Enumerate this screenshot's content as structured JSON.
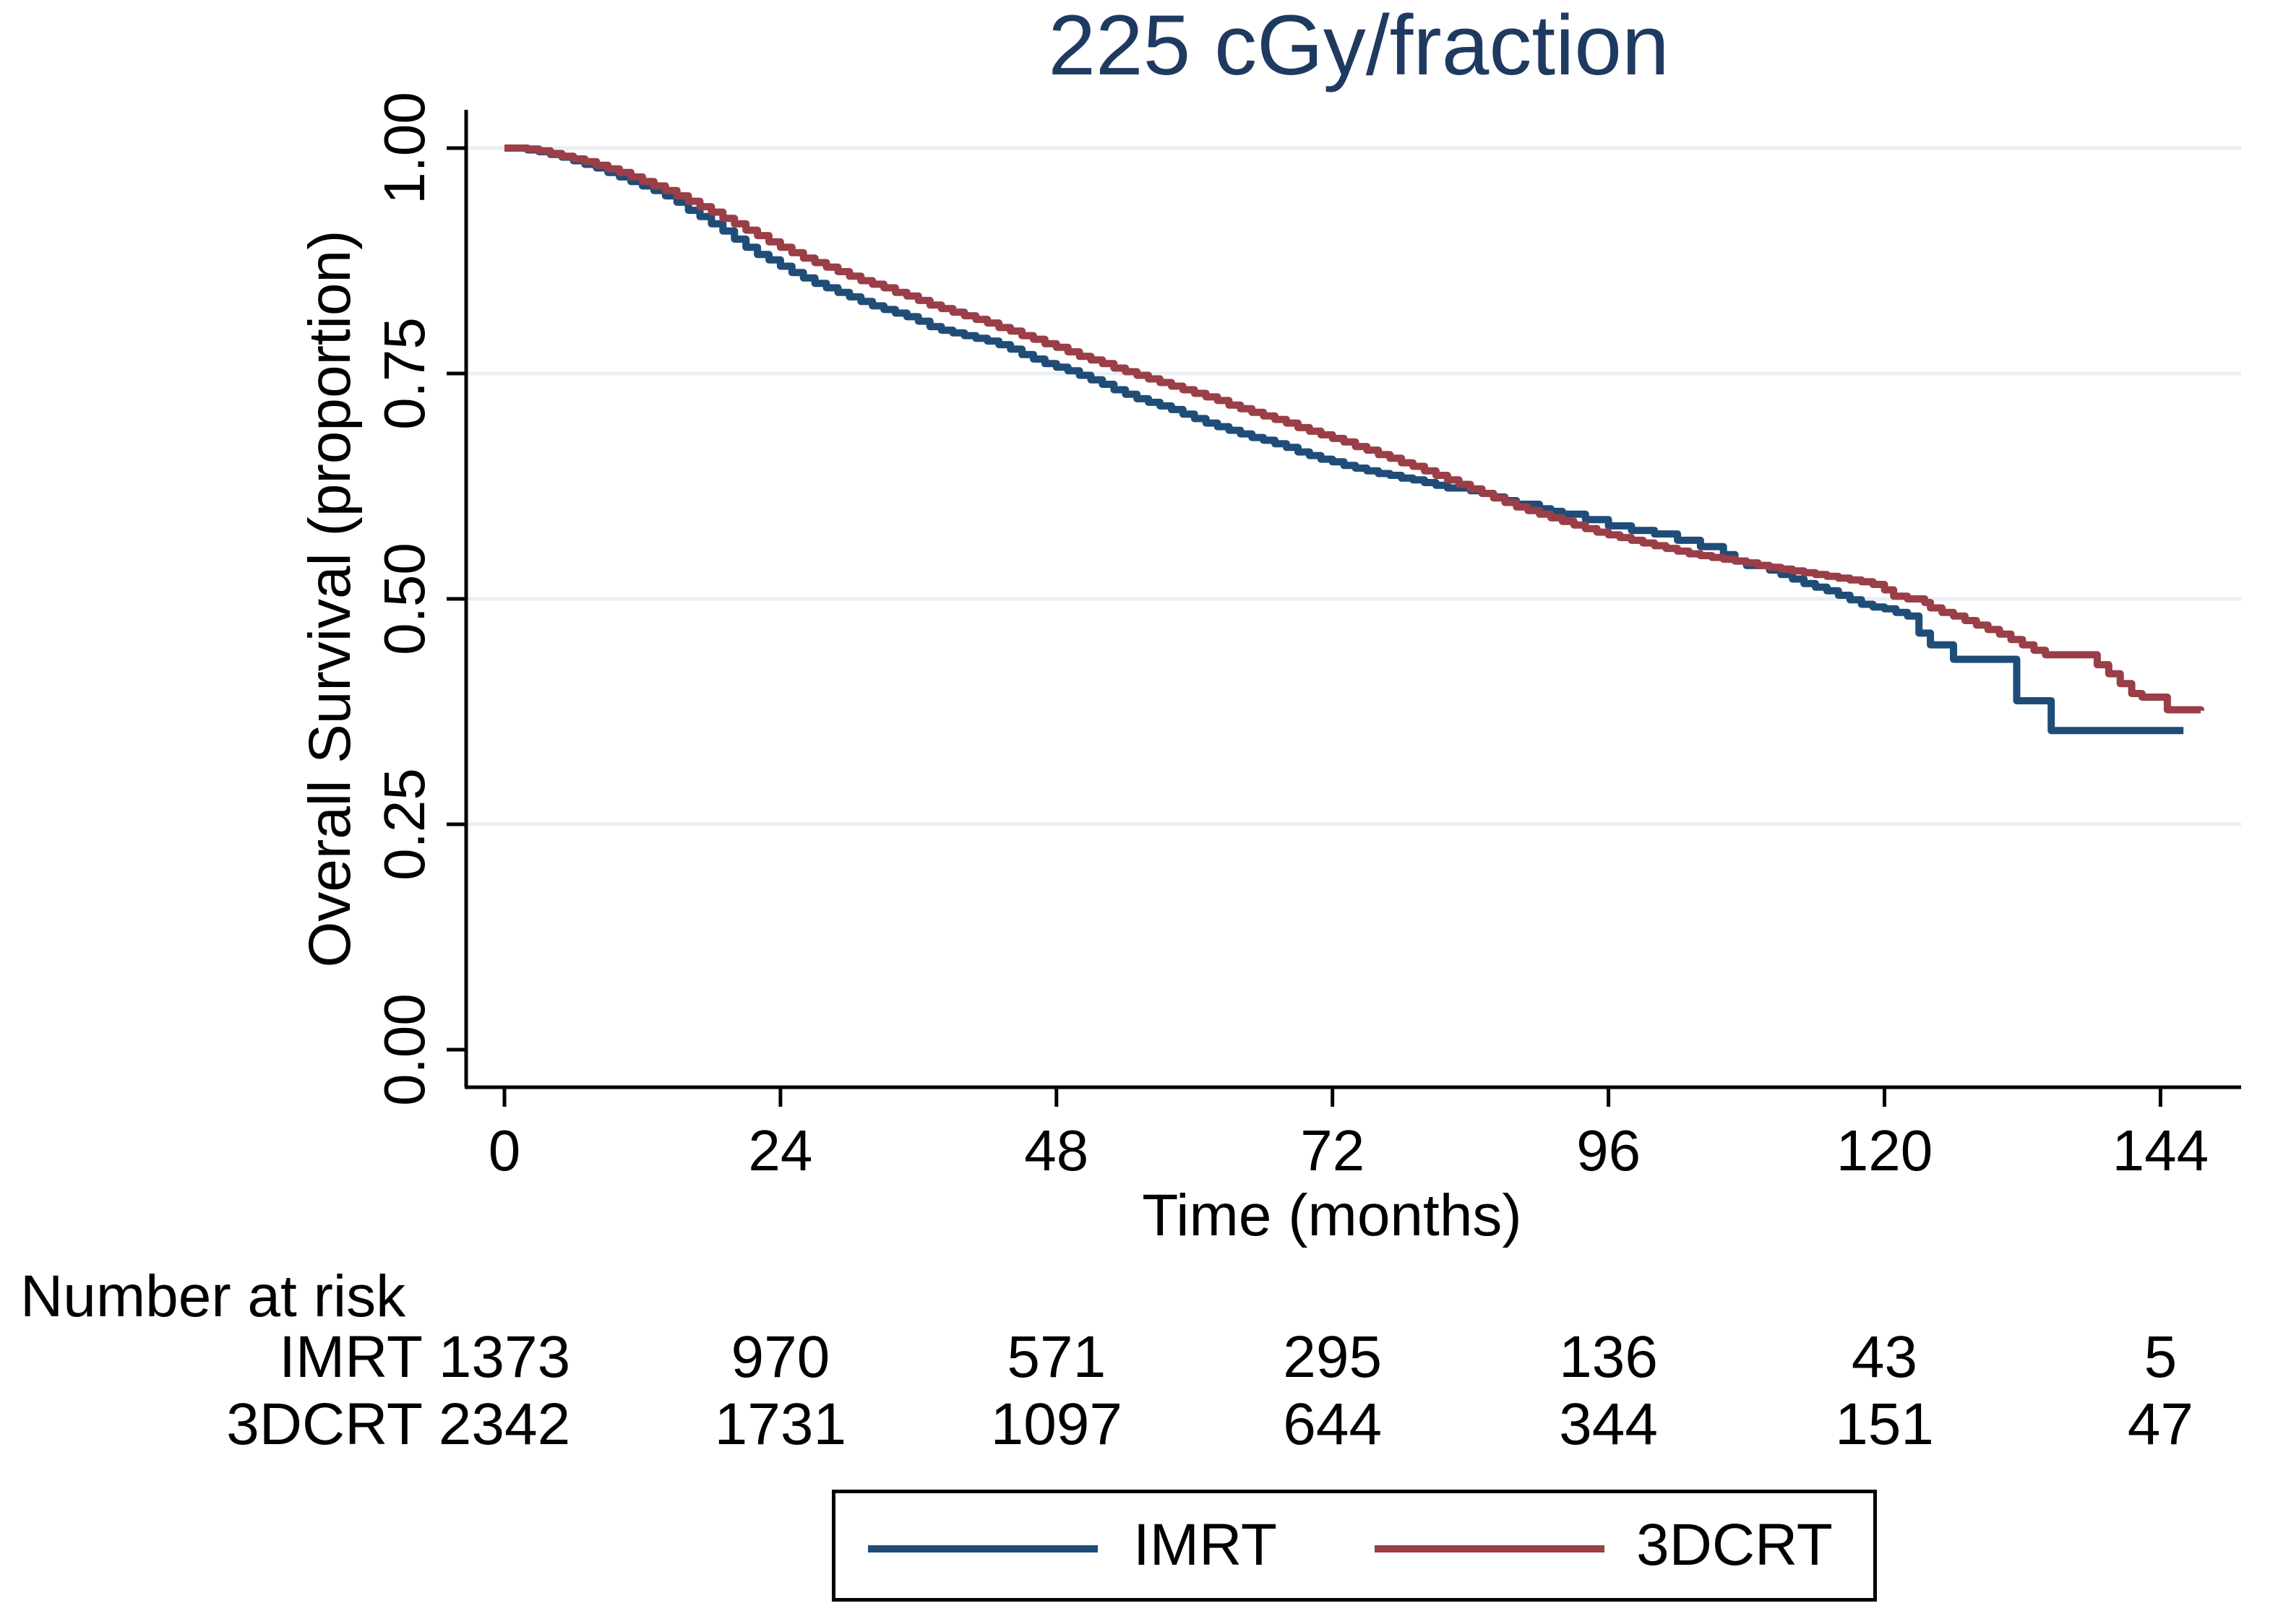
{
  "title": {
    "text": "225 cGy/fraction",
    "color": "#1f3a60"
  },
  "axes": {
    "x": {
      "label": "Time (months)",
      "tick_labels": [
        "0",
        "24",
        "48",
        "72",
        "96",
        "120",
        "144"
      ],
      "tick_values": [
        0,
        24,
        48,
        72,
        96,
        120,
        144
      ],
      "range": [
        0,
        148
      ]
    },
    "y": {
      "label": "Overall Survival (proportion)",
      "tick_labels": [
        "1.00",
        "0.75",
        "0.50",
        "0.25",
        "0.00"
      ],
      "tick_values": [
        1.0,
        0.75,
        0.5,
        0.25,
        0.0
      ],
      "grid_values": [
        1.0,
        0.75,
        0.5,
        0.25
      ],
      "range": [
        0,
        1
      ]
    }
  },
  "styles": {
    "grid_color": "#e9eff2",
    "axis_color": "#000000",
    "imrt_color": "#1f4d78",
    "tdcrt_color": "#9a3e48"
  },
  "risk_table": {
    "heading": "Number at risk",
    "rows": [
      {
        "label": "IMRT",
        "values": [
          "1373",
          "970",
          "571",
          "295",
          "136",
          "43",
          "5"
        ]
      },
      {
        "label": "3DCRT",
        "values": [
          "2342",
          "1731",
          "1097",
          "644",
          "344",
          "151",
          "47"
        ]
      }
    ]
  },
  "legend": {
    "items": [
      {
        "label": "IMRT",
        "color": "#1f4d78"
      },
      {
        "label": "3DCRT",
        "color": "#9a3e48"
      }
    ]
  },
  "chart_data": {
    "type": "line",
    "subtype": "kaplan-meier-step",
    "title": "225 cGy/fraction",
    "xlabel": "Time (months)",
    "ylabel": "Overall Survival (proportion)",
    "xlim": [
      0,
      148
    ],
    "ylim": [
      0,
      1
    ],
    "grid": true,
    "legend_position": "bottom",
    "series": [
      {
        "name": "IMRT",
        "color": "#1f4d78",
        "points": [
          [
            0,
            1.0
          ],
          [
            2,
            0.998
          ],
          [
            3,
            0.996
          ],
          [
            4,
            0.993
          ],
          [
            5,
            0.99
          ],
          [
            6,
            0.986
          ],
          [
            7,
            0.982
          ],
          [
            8,
            0.978
          ],
          [
            9,
            0.973
          ],
          [
            10,
            0.968
          ],
          [
            11,
            0.963
          ],
          [
            12,
            0.958
          ],
          [
            13,
            0.953
          ],
          [
            14,
            0.947
          ],
          [
            15,
            0.94
          ],
          [
            16,
            0.931
          ],
          [
            17,
            0.924
          ],
          [
            18,
            0.916
          ],
          [
            19,
            0.908
          ],
          [
            20,
            0.899
          ],
          [
            21,
            0.89
          ],
          [
            22,
            0.882
          ],
          [
            23,
            0.876
          ],
          [
            24,
            0.869
          ],
          [
            25,
            0.862
          ],
          [
            26,
            0.856
          ],
          [
            27,
            0.85
          ],
          [
            28,
            0.845
          ],
          [
            29,
            0.84
          ],
          [
            30,
            0.835
          ],
          [
            31,
            0.83
          ],
          [
            32,
            0.825
          ],
          [
            33,
            0.821
          ],
          [
            34,
            0.817
          ],
          [
            35,
            0.813
          ],
          [
            36,
            0.808
          ],
          [
            37,
            0.802
          ],
          [
            38,
            0.798
          ],
          [
            39,
            0.795
          ],
          [
            40,
            0.792
          ],
          [
            41,
            0.789
          ],
          [
            42,
            0.786
          ],
          [
            43,
            0.782
          ],
          [
            44,
            0.777
          ],
          [
            45,
            0.771
          ],
          [
            46,
            0.766
          ],
          [
            47,
            0.761
          ],
          [
            48,
            0.757
          ],
          [
            49,
            0.753
          ],
          [
            50,
            0.748
          ],
          [
            51,
            0.743
          ],
          [
            52,
            0.738
          ],
          [
            53,
            0.732
          ],
          [
            54,
            0.727
          ],
          [
            55,
            0.722
          ],
          [
            56,
            0.718
          ],
          [
            57,
            0.714
          ],
          [
            58,
            0.71
          ],
          [
            59,
            0.705
          ],
          [
            60,
            0.7
          ],
          [
            61,
            0.695
          ],
          [
            62,
            0.691
          ],
          [
            63,
            0.687
          ],
          [
            64,
            0.683
          ],
          [
            65,
            0.679
          ],
          [
            66,
            0.676
          ],
          [
            67,
            0.672
          ],
          [
            68,
            0.668
          ],
          [
            69,
            0.663
          ],
          [
            70,
            0.659
          ],
          [
            71,
            0.655
          ],
          [
            72,
            0.652
          ],
          [
            73,
            0.648
          ],
          [
            74,
            0.645
          ],
          [
            75,
            0.642
          ],
          [
            76,
            0.639
          ],
          [
            77,
            0.637
          ],
          [
            78,
            0.634
          ],
          [
            79,
            0.632
          ],
          [
            80,
            0.629
          ],
          [
            81,
            0.626
          ],
          [
            82,
            0.623
          ],
          [
            84,
            0.62
          ],
          [
            85,
            0.617
          ],
          [
            86,
            0.613
          ],
          [
            87,
            0.609
          ],
          [
            88,
            0.605
          ],
          [
            90,
            0.6
          ],
          [
            91,
            0.597
          ],
          [
            92,
            0.594
          ],
          [
            94,
            0.588
          ],
          [
            96,
            0.581
          ],
          [
            98,
            0.576
          ],
          [
            100,
            0.572
          ],
          [
            102,
            0.565
          ],
          [
            104,
            0.558
          ],
          [
            106,
            0.549
          ],
          [
            107,
            0.542
          ],
          [
            108,
            0.537
          ],
          [
            110,
            0.532
          ],
          [
            111,
            0.527
          ],
          [
            112,
            0.522
          ],
          [
            113,
            0.517
          ],
          [
            114,
            0.513
          ],
          [
            115,
            0.509
          ],
          [
            116,
            0.504
          ],
          [
            117,
            0.499
          ],
          [
            118,
            0.494
          ],
          [
            119,
            0.491
          ],
          [
            120,
            0.489
          ],
          [
            121,
            0.485
          ],
          [
            122,
            0.481
          ],
          [
            123,
            0.462
          ],
          [
            124,
            0.449
          ],
          [
            126,
            0.433
          ],
          [
            131.5,
            0.387
          ],
          [
            134.5,
            0.354
          ],
          [
            146,
            0.354
          ]
        ]
      },
      {
        "name": "3DCRT",
        "color": "#9a3e48",
        "points": [
          [
            0,
            1.0
          ],
          [
            2,
            0.999
          ],
          [
            3,
            0.997
          ],
          [
            4,
            0.994
          ],
          [
            5,
            0.991
          ],
          [
            6,
            0.988
          ],
          [
            7,
            0.985
          ],
          [
            8,
            0.981
          ],
          [
            9,
            0.977
          ],
          [
            10,
            0.973
          ],
          [
            11,
            0.968
          ],
          [
            12,
            0.963
          ],
          [
            13,
            0.958
          ],
          [
            14,
            0.953
          ],
          [
            15,
            0.947
          ],
          [
            16,
            0.941
          ],
          [
            17,
            0.935
          ],
          [
            18,
            0.929
          ],
          [
            19,
            0.922
          ],
          [
            20,
            0.916
          ],
          [
            21,
            0.909
          ],
          [
            22,
            0.903
          ],
          [
            23,
            0.896
          ],
          [
            24,
            0.89
          ],
          [
            25,
            0.884
          ],
          [
            26,
            0.878
          ],
          [
            27,
            0.873
          ],
          [
            28,
            0.868
          ],
          [
            29,
            0.863
          ],
          [
            30,
            0.858
          ],
          [
            31,
            0.853
          ],
          [
            32,
            0.849
          ],
          [
            33,
            0.845
          ],
          [
            34,
            0.84
          ],
          [
            35,
            0.836
          ],
          [
            36,
            0.831
          ],
          [
            37,
            0.826
          ],
          [
            38,
            0.822
          ],
          [
            39,
            0.818
          ],
          [
            40,
            0.814
          ],
          [
            41,
            0.81
          ],
          [
            42,
            0.806
          ],
          [
            43,
            0.801
          ],
          [
            44,
            0.797
          ],
          [
            45,
            0.792
          ],
          [
            46,
            0.788
          ],
          [
            47,
            0.783
          ],
          [
            48,
            0.779
          ],
          [
            49,
            0.774
          ],
          [
            50,
            0.769
          ],
          [
            51,
            0.765
          ],
          [
            52,
            0.761
          ],
          [
            53,
            0.756
          ],
          [
            54,
            0.752
          ],
          [
            55,
            0.748
          ],
          [
            56,
            0.744
          ],
          [
            57,
            0.74
          ],
          [
            58,
            0.736
          ],
          [
            59,
            0.732
          ],
          [
            60,
            0.728
          ],
          [
            61,
            0.724
          ],
          [
            62,
            0.72
          ],
          [
            63,
            0.715
          ],
          [
            64,
            0.711
          ],
          [
            65,
            0.707
          ],
          [
            66,
            0.703
          ],
          [
            67,
            0.699
          ],
          [
            68,
            0.695
          ],
          [
            69,
            0.69
          ],
          [
            70,
            0.686
          ],
          [
            71,
            0.682
          ],
          [
            72,
            0.678
          ],
          [
            73,
            0.674
          ],
          [
            74,
            0.669
          ],
          [
            75,
            0.665
          ],
          [
            76,
            0.66
          ],
          [
            77,
            0.656
          ],
          [
            78,
            0.651
          ],
          [
            79,
            0.647
          ],
          [
            80,
            0.642
          ],
          [
            81,
            0.637
          ],
          [
            82,
            0.632
          ],
          [
            83,
            0.627
          ],
          [
            84,
            0.622
          ],
          [
            85,
            0.617
          ],
          [
            86,
            0.612
          ],
          [
            87,
            0.607
          ],
          [
            88,
            0.602
          ],
          [
            89,
            0.598
          ],
          [
            90,
            0.594
          ],
          [
            91,
            0.59
          ],
          [
            92,
            0.586
          ],
          [
            93,
            0.582
          ],
          [
            94,
            0.578
          ],
          [
            95,
            0.574
          ],
          [
            96,
            0.571
          ],
          [
            97,
            0.568
          ],
          [
            98,
            0.565
          ],
          [
            99,
            0.562
          ],
          [
            100,
            0.559
          ],
          [
            101,
            0.556
          ],
          [
            102,
            0.553
          ],
          [
            103,
            0.55
          ],
          [
            104,
            0.548
          ],
          [
            105,
            0.546
          ],
          [
            106,
            0.544
          ],
          [
            107,
            0.542
          ],
          [
            108,
            0.54
          ],
          [
            109,
            0.537
          ],
          [
            110,
            0.535
          ],
          [
            111,
            0.533
          ],
          [
            112,
            0.531
          ],
          [
            113,
            0.529
          ],
          [
            114,
            0.527
          ],
          [
            115,
            0.525
          ],
          [
            116,
            0.523
          ],
          [
            117,
            0.521
          ],
          [
            118,
            0.519
          ],
          [
            119,
            0.516
          ],
          [
            120,
            0.51
          ],
          [
            120.8,
            0.503
          ],
          [
            122,
            0.5
          ],
          [
            123.5,
            0.496
          ],
          [
            124,
            0.49
          ],
          [
            125,
            0.485
          ],
          [
            126,
            0.481
          ],
          [
            127,
            0.476
          ],
          [
            128,
            0.471
          ],
          [
            129,
            0.466
          ],
          [
            130,
            0.461
          ],
          [
            131,
            0.455
          ],
          [
            132,
            0.449
          ],
          [
            133,
            0.443
          ],
          [
            134,
            0.438
          ],
          [
            138.5,
            0.427
          ],
          [
            139.5,
            0.417
          ],
          [
            140.5,
            0.406
          ],
          [
            141.5,
            0.395
          ],
          [
            142.4,
            0.391
          ],
          [
            144.6,
            0.377
          ],
          [
            147.5,
            0.376
          ]
        ]
      }
    ],
    "number_at_risk": {
      "times": [
        0,
        24,
        48,
        72,
        96,
        120,
        144
      ],
      "IMRT": [
        1373,
        970,
        571,
        295,
        136,
        43,
        5
      ],
      "3DCRT": [
        2342,
        1731,
        1097,
        644,
        344,
        151,
        47
      ]
    }
  }
}
